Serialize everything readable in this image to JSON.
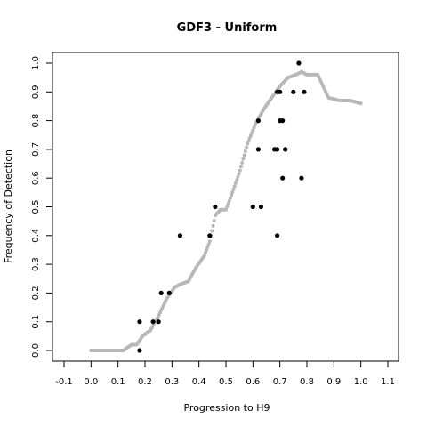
{
  "chart_data": {
    "type": "scatter",
    "title": "GDF3 - Uniform",
    "xlabel": "Progression to H9",
    "ylabel": "Frequency of Detection",
    "xlim": [
      -0.1,
      1.1
    ],
    "ylim": [
      0.0,
      1.0
    ],
    "x_ticks": [
      "-0.1",
      "0.0",
      "0.1",
      "0.2",
      "0.3",
      "0.4",
      "0.5",
      "0.6",
      "0.7",
      "0.8",
      "0.9",
      "1.0",
      "1.1"
    ],
    "y_ticks": [
      "0.0",
      "0.1",
      "0.2",
      "0.3",
      "0.4",
      "0.5",
      "0.6",
      "0.7",
      "0.8",
      "0.9",
      "1.0"
    ],
    "grid": false,
    "series": [
      {
        "color": "#b8b8b8",
        "curve_nodes": [
          [
            0.0,
            0.0
          ],
          [
            0.12,
            0.0
          ],
          [
            0.15,
            0.02
          ],
          [
            0.17,
            0.02
          ],
          [
            0.19,
            0.05
          ],
          [
            0.22,
            0.07
          ],
          [
            0.25,
            0.12
          ],
          [
            0.28,
            0.18
          ],
          [
            0.31,
            0.22
          ],
          [
            0.33,
            0.23
          ],
          [
            0.36,
            0.24
          ],
          [
            0.39,
            0.29
          ],
          [
            0.42,
            0.33
          ],
          [
            0.44,
            0.38
          ],
          [
            0.46,
            0.47
          ],
          [
            0.48,
            0.49
          ],
          [
            0.5,
            0.49
          ],
          [
            0.52,
            0.54
          ],
          [
            0.55,
            0.62
          ],
          [
            0.58,
            0.72
          ],
          [
            0.61,
            0.79
          ],
          [
            0.64,
            0.84
          ],
          [
            0.67,
            0.88
          ],
          [
            0.7,
            0.92
          ],
          [
            0.73,
            0.95
          ],
          [
            0.76,
            0.96
          ],
          [
            0.78,
            0.97
          ],
          [
            0.8,
            0.96
          ],
          [
            0.84,
            0.96
          ],
          [
            0.86,
            0.92
          ],
          [
            0.88,
            0.88
          ],
          [
            0.92,
            0.87
          ],
          [
            0.96,
            0.87
          ],
          [
            1.0,
            0.86
          ]
        ]
      },
      {
        "color": "#000000",
        "points": [
          [
            0.18,
            0.0
          ],
          [
            0.18,
            0.1
          ],
          [
            0.23,
            0.1
          ],
          [
            0.25,
            0.1
          ],
          [
            0.26,
            0.2
          ],
          [
            0.29,
            0.2
          ],
          [
            0.33,
            0.4
          ],
          [
            0.44,
            0.4
          ],
          [
            0.46,
            0.5
          ],
          [
            0.6,
            0.5
          ],
          [
            0.63,
            0.5
          ],
          [
            0.62,
            0.7
          ],
          [
            0.62,
            0.8
          ],
          [
            0.68,
            0.7
          ],
          [
            0.69,
            0.7
          ],
          [
            0.69,
            0.9
          ],
          [
            0.7,
            0.9
          ],
          [
            0.7,
            0.8
          ],
          [
            0.71,
            0.8
          ],
          [
            0.71,
            0.6
          ],
          [
            0.72,
            0.7
          ],
          [
            0.69,
            0.4
          ],
          [
            0.75,
            0.9
          ],
          [
            0.77,
            1.0
          ],
          [
            0.78,
            0.6
          ],
          [
            0.79,
            0.9
          ]
        ]
      }
    ]
  }
}
